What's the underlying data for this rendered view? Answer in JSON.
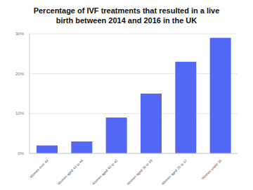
{
  "chart_data": {
    "type": "bar",
    "title": "Percentage of IVF treatments that resulted in a live birth between 2014 and 2016 in the UK",
    "categories": [
      "Women over 44",
      "Women aged 43 to 44",
      "Women aged 40 to 42",
      "Women aged 38 to 39",
      "Women aged 35 to 37",
      "Women under 35"
    ],
    "values": [
      2,
      3,
      9,
      15,
      23,
      29
    ],
    "color": "#5468f7",
    "ylim": [
      0,
      30
    ],
    "yticks": [
      {
        "value": 0,
        "label": "0%"
      },
      {
        "value": 10,
        "label": "10%"
      },
      {
        "value": 20,
        "label": "20%"
      },
      {
        "value": 30,
        "label": "30%"
      }
    ],
    "grid": true
  }
}
